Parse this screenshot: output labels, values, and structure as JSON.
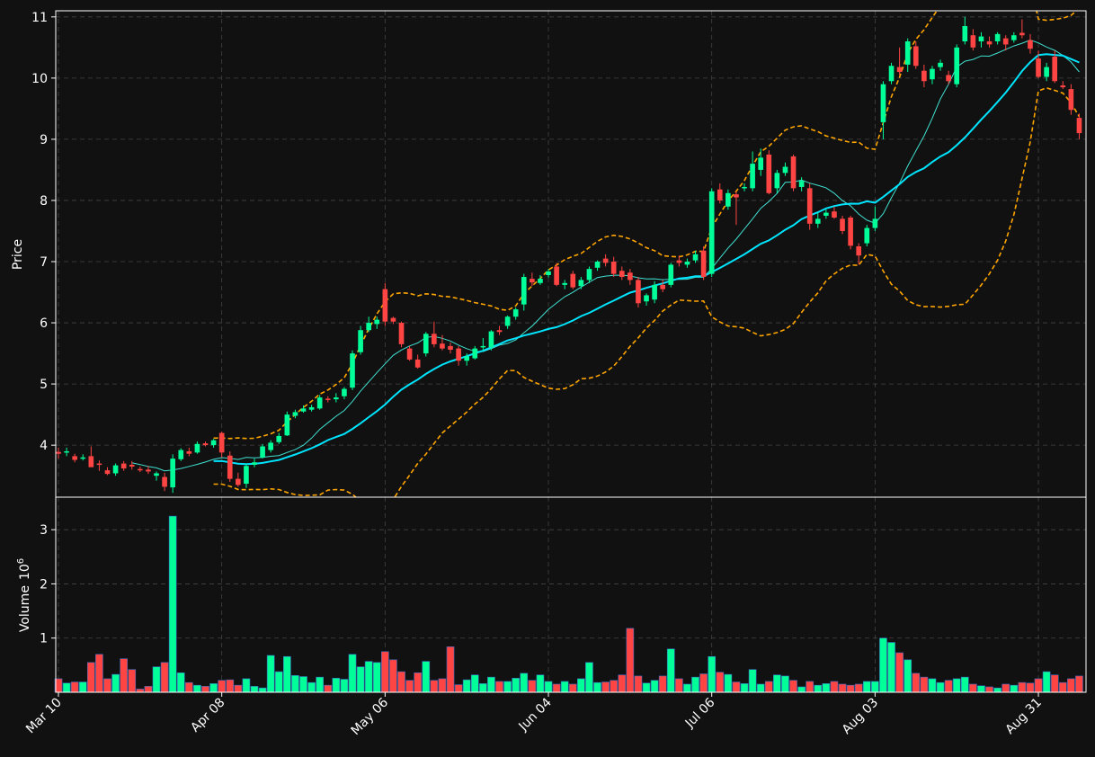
{
  "chart_data": {
    "type": "candlestick",
    "panels": [
      {
        "name": "price",
        "ylabel": "Price",
        "ylim": [
          3.15,
          11.1
        ],
        "yticks": [
          4,
          5,
          6,
          7,
          8,
          9,
          10,
          11
        ]
      },
      {
        "name": "volume",
        "ylabel": "Volume",
        "ylabel_exponent": "6",
        "ylim": [
          0,
          3.6
        ],
        "yticks": [
          1,
          2,
          3
        ]
      }
    ],
    "x_tick_labels": [
      {
        "label": "Mar 10",
        "index": 0
      },
      {
        "label": "Apr 08",
        "index": 20
      },
      {
        "label": "May 06",
        "index": 40
      },
      {
        "label": "Jun 04",
        "index": 60
      },
      {
        "label": "Jul 06",
        "index": 80
      },
      {
        "label": "Aug 03",
        "index": 100
      },
      {
        "label": "Aug 31",
        "index": 120
      }
    ],
    "grid": true,
    "colors": {
      "up": "#00ff99",
      "down": "#ff4444",
      "sma_slow": "#00e5ff",
      "sma_fast": "#40e0d0",
      "bands": "#ffa500",
      "background": "#111111",
      "axis": "#ffffff"
    },
    "candles": [
      [
        3.89,
        3.96,
        3.78,
        3.86,
        0.25
      ],
      [
        3.88,
        3.96,
        3.82,
        3.9,
        0.17
      ],
      [
        3.82,
        3.86,
        3.72,
        3.76,
        0.19
      ],
      [
        3.78,
        3.85,
        3.75,
        3.8,
        0.19
      ],
      [
        3.82,
        3.98,
        3.68,
        3.64,
        0.55
      ],
      [
        3.7,
        3.75,
        3.58,
        3.68,
        0.7
      ],
      [
        3.59,
        3.64,
        3.51,
        3.53,
        0.25
      ],
      [
        3.54,
        3.7,
        3.5,
        3.67,
        0.33
      ],
      [
        3.7,
        3.74,
        3.58,
        3.62,
        0.62
      ],
      [
        3.68,
        3.74,
        3.6,
        3.65,
        0.42
      ],
      [
        3.61,
        3.65,
        3.56,
        3.59,
        0.06
      ],
      [
        3.6,
        3.66,
        3.53,
        3.57,
        0.11
      ],
      [
        3.5,
        3.57,
        3.42,
        3.54,
        0.47
      ],
      [
        3.48,
        3.55,
        3.25,
        3.32,
        0.55
      ],
      [
        3.31,
        3.85,
        3.22,
        3.78,
        3.25
      ],
      [
        3.77,
        3.95,
        3.74,
        3.92,
        0.36
      ],
      [
        3.9,
        3.96,
        3.82,
        3.86,
        0.18
      ],
      [
        3.88,
        4.06,
        3.86,
        4.02,
        0.13
      ],
      [
        4.03,
        4.06,
        3.98,
        4.0,
        0.11
      ],
      [
        4.0,
        4.1,
        3.96,
        4.08,
        0.16
      ],
      [
        4.2,
        4.22,
        3.8,
        3.88,
        0.22
      ],
      [
        3.83,
        3.9,
        3.4,
        3.45,
        0.23
      ],
      [
        3.45,
        3.55,
        3.32,
        3.35,
        0.13
      ],
      [
        3.37,
        3.7,
        3.3,
        3.66,
        0.25
      ],
      [
        3.68,
        3.78,
        3.64,
        3.72,
        0.11
      ],
      [
        3.8,
        4.02,
        3.78,
        3.98,
        0.08
      ],
      [
        3.92,
        4.08,
        3.88,
        4.04,
        0.68
      ],
      [
        4.05,
        4.2,
        4.02,
        4.15,
        0.38
      ],
      [
        4.16,
        4.55,
        4.15,
        4.5,
        0.66
      ],
      [
        4.48,
        4.58,
        4.44,
        4.54,
        0.31
      ],
      [
        4.55,
        4.65,
        4.53,
        4.6,
        0.29
      ],
      [
        4.58,
        4.66,
        4.55,
        4.62,
        0.18
      ],
      [
        4.6,
        4.82,
        4.58,
        4.78,
        0.28
      ],
      [
        4.76,
        4.8,
        4.7,
        4.74,
        0.13
      ],
      [
        4.75,
        4.85,
        4.7,
        4.78,
        0.26
      ],
      [
        4.8,
        4.95,
        4.75,
        4.92,
        0.24
      ],
      [
        4.94,
        5.55,
        4.9,
        5.5,
        0.7
      ],
      [
        5.52,
        5.95,
        5.48,
        5.88,
        0.47
      ],
      [
        5.88,
        6.1,
        5.85,
        6.0,
        0.57
      ],
      [
        5.98,
        6.1,
        5.9,
        6.05,
        0.55
      ],
      [
        6.55,
        6.65,
        5.95,
        6.02,
        0.75
      ],
      [
        6.08,
        6.1,
        5.98,
        6.02,
        0.6
      ],
      [
        6.0,
        6.02,
        5.6,
        5.65,
        0.38
      ],
      [
        5.58,
        5.62,
        5.38,
        5.4,
        0.22
      ],
      [
        5.4,
        5.48,
        5.25,
        5.27,
        0.36
      ],
      [
        5.5,
        5.85,
        5.45,
        5.82,
        0.57
      ],
      [
        5.82,
        6.02,
        5.6,
        5.65,
        0.22
      ],
      [
        5.66,
        5.8,
        5.55,
        5.58,
        0.25
      ],
      [
        5.62,
        5.68,
        5.5,
        5.56,
        0.84
      ],
      [
        5.58,
        5.62,
        5.3,
        5.38,
        0.14
      ],
      [
        5.38,
        5.5,
        5.3,
        5.45,
        0.23
      ],
      [
        5.42,
        5.62,
        5.4,
        5.58,
        0.32
      ],
      [
        5.6,
        5.75,
        5.55,
        5.62,
        0.16
      ],
      [
        5.6,
        5.88,
        5.55,
        5.86,
        0.28
      ],
      [
        5.88,
        5.95,
        5.8,
        5.85,
        0.2
      ],
      [
        5.95,
        6.12,
        5.9,
        6.1,
        0.2
      ],
      [
        6.1,
        6.25,
        6.05,
        6.22,
        0.26
      ],
      [
        6.3,
        6.8,
        6.2,
        6.75,
        0.35
      ],
      [
        6.72,
        6.82,
        6.6,
        6.66,
        0.22
      ],
      [
        6.65,
        6.78,
        6.62,
        6.72,
        0.32
      ],
      [
        6.78,
        6.88,
        6.74,
        6.84,
        0.2
      ],
      [
        6.92,
        6.98,
        6.6,
        6.62,
        0.15
      ],
      [
        6.62,
        6.7,
        6.55,
        6.65,
        0.2
      ],
      [
        6.8,
        6.85,
        6.55,
        6.58,
        0.15
      ],
      [
        6.6,
        6.75,
        6.55,
        6.7,
        0.25
      ],
      [
        6.7,
        6.92,
        6.65,
        6.88,
        0.55
      ],
      [
        6.9,
        7.02,
        6.85,
        7.0,
        0.18
      ],
      [
        7.05,
        7.12,
        6.92,
        6.98,
        0.19
      ],
      [
        7.0,
        7.08,
        6.75,
        6.8,
        0.22
      ],
      [
        6.85,
        6.92,
        6.7,
        6.75,
        0.32
      ],
      [
        6.82,
        6.88,
        6.62,
        6.7,
        1.18
      ],
      [
        6.7,
        6.75,
        6.25,
        6.32,
        0.3
      ],
      [
        6.35,
        6.48,
        6.28,
        6.45,
        0.17
      ],
      [
        6.38,
        6.68,
        6.32,
        6.62,
        0.22
      ],
      [
        6.62,
        6.7,
        6.5,
        6.55,
        0.3
      ],
      [
        6.62,
        6.98,
        6.58,
        6.95,
        0.8
      ],
      [
        7.02,
        7.1,
        6.92,
        6.98,
        0.25
      ],
      [
        6.95,
        7.05,
        6.9,
        7.0,
        0.15
      ],
      [
        7.02,
        7.18,
        6.98,
        7.12,
        0.28
      ],
      [
        7.18,
        7.25,
        6.7,
        6.75,
        0.34
      ],
      [
        6.8,
        8.2,
        6.75,
        8.15,
        0.66
      ],
      [
        8.18,
        8.28,
        7.95,
        8.0,
        0.37
      ],
      [
        7.9,
        8.18,
        7.85,
        8.12,
        0.33
      ],
      [
        8.1,
        8.15,
        7.6,
        8.05,
        0.19
      ],
      [
        8.2,
        8.28,
        8.15,
        8.22,
        0.16
      ],
      [
        8.2,
        8.8,
        8.15,
        8.6,
        0.42
      ],
      [
        8.5,
        8.85,
        8.4,
        8.7,
        0.15
      ],
      [
        8.75,
        8.82,
        8.1,
        8.12,
        0.2
      ],
      [
        8.2,
        8.5,
        8.12,
        8.45,
        0.32
      ],
      [
        8.45,
        8.62,
        8.4,
        8.55,
        0.3
      ],
      [
        8.72,
        8.75,
        8.15,
        8.2,
        0.22
      ],
      [
        8.22,
        8.38,
        8.15,
        8.32,
        0.1
      ],
      [
        8.2,
        8.28,
        7.52,
        7.62,
        0.2
      ],
      [
        7.62,
        7.8,
        7.55,
        7.7,
        0.13
      ],
      [
        7.75,
        7.85,
        7.7,
        7.8,
        0.16
      ],
      [
        7.82,
        7.9,
        7.7,
        7.72,
        0.2
      ],
      [
        7.7,
        7.75,
        7.45,
        7.5,
        0.15
      ],
      [
        7.72,
        7.75,
        7.2,
        7.26,
        0.13
      ],
      [
        7.25,
        7.3,
        6.95,
        7.1,
        0.15
      ],
      [
        7.3,
        7.6,
        7.25,
        7.55,
        0.2
      ],
      [
        7.55,
        7.9,
        7.5,
        7.7,
        0.2
      ],
      [
        9.28,
        9.95,
        9.0,
        9.9,
        1.0
      ],
      [
        9.95,
        10.25,
        9.9,
        10.2,
        0.92
      ],
      [
        10.18,
        10.5,
        10.05,
        10.1,
        0.73
      ],
      [
        10.22,
        10.65,
        10.1,
        10.6,
        0.6
      ],
      [
        10.52,
        10.6,
        10.15,
        10.2,
        0.35
      ],
      [
        10.12,
        10.22,
        9.85,
        9.95,
        0.28
      ],
      [
        9.98,
        10.2,
        9.9,
        10.15,
        0.25
      ],
      [
        10.18,
        10.3,
        10.12,
        10.25,
        0.18
      ],
      [
        10.05,
        10.12,
        9.9,
        9.95,
        0.22
      ],
      [
        9.9,
        10.55,
        9.85,
        10.5,
        0.25
      ],
      [
        10.6,
        11.0,
        10.55,
        10.85,
        0.28
      ],
      [
        10.7,
        10.8,
        10.45,
        10.5,
        0.15
      ],
      [
        10.6,
        10.75,
        10.5,
        10.68,
        0.12
      ],
      [
        10.6,
        10.68,
        10.5,
        10.55,
        0.1
      ],
      [
        10.6,
        10.75,
        10.55,
        10.72,
        0.08
      ],
      [
        10.65,
        10.7,
        10.45,
        10.55,
        0.15
      ],
      [
        10.62,
        10.75,
        10.58,
        10.7,
        0.13
      ],
      [
        10.74,
        10.96,
        10.65,
        10.7,
        0.18
      ],
      [
        10.62,
        10.72,
        10.4,
        10.48,
        0.17
      ],
      [
        10.32,
        10.45,
        10.0,
        10.02,
        0.25
      ],
      [
        10.02,
        10.25,
        9.95,
        10.18,
        0.38
      ],
      [
        10.35,
        10.45,
        9.92,
        9.95,
        0.32
      ],
      [
        9.88,
        9.95,
        9.82,
        9.85,
        0.18
      ],
      [
        9.82,
        9.9,
        9.4,
        9.48,
        0.25
      ],
      [
        9.35,
        9.42,
        9.0,
        9.1,
        0.3
      ]
    ],
    "candle_fields": [
      "open",
      "high",
      "low",
      "close",
      "volume_millions"
    ]
  }
}
